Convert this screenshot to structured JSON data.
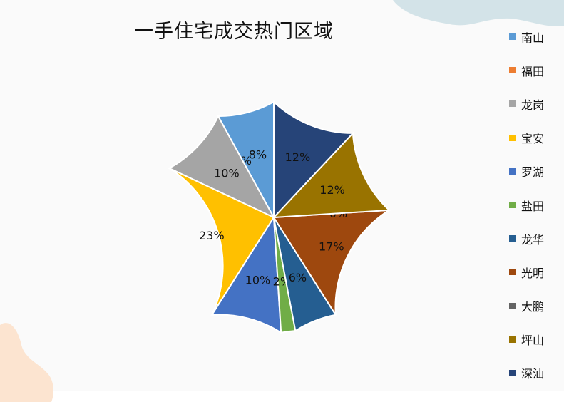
{
  "chart_data": {
    "type": "pie",
    "title": "一手住宅成交热门区域",
    "legend_position": "right",
    "start_angle_deg": 0,
    "slices": [
      {
        "label": "南山",
        "value": 8,
        "display": "8%",
        "color": "#5b9bd5"
      },
      {
        "label": "福田",
        "value": 0,
        "display": "0%",
        "color": "#ed7d31"
      },
      {
        "label": "龙岗",
        "value": 10,
        "display": "10%",
        "color": "#a5a5a5"
      },
      {
        "label": "宝安",
        "value": 23,
        "display": "23%",
        "color": "#ffc000"
      },
      {
        "label": "罗湖",
        "value": 10,
        "display": "10%",
        "color": "#4472c4"
      },
      {
        "label": "盐田",
        "value": 2,
        "display": "2%",
        "color": "#70ad47"
      },
      {
        "label": "龙华",
        "value": 6,
        "display": "6%",
        "color": "#255e91"
      },
      {
        "label": "光明",
        "value": 17,
        "display": "17%",
        "color": "#9e480e"
      },
      {
        "label": "大鹏",
        "value": 0,
        "display": "0%",
        "color": "#636363"
      },
      {
        "label": "坪山",
        "value": 12,
        "display": "12%",
        "color": "#997300"
      },
      {
        "label": "深汕",
        "value": 12,
        "display": "12%",
        "color": "#264478"
      }
    ]
  }
}
